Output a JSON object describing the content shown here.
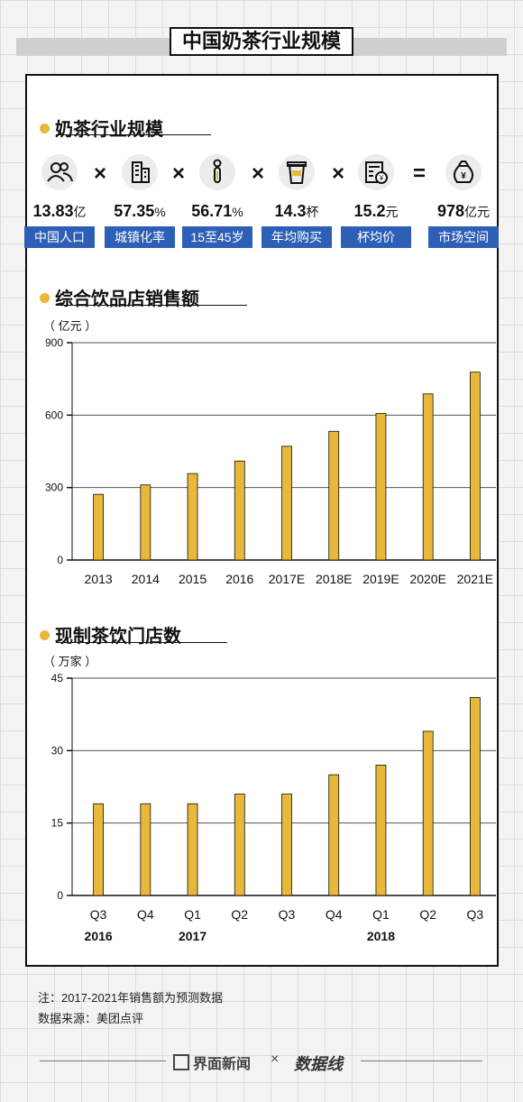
{
  "header": {
    "title": "中国奶茶行业规模"
  },
  "section1": {
    "title": "奶茶行业规模",
    "formula": [
      {
        "icon": "people-icon",
        "value": "13.83",
        "unit": "亿",
        "label": "中国人口"
      },
      {
        "icon": "buildings-icon",
        "value": "57.35",
        "unit": "%",
        "label": "城镇化率"
      },
      {
        "icon": "person-icon",
        "value": "56.71",
        "unit": "%",
        "label": "15至45岁"
      },
      {
        "icon": "cup-icon",
        "value": "14.3",
        "unit": "杯",
        "label": "年均购买"
      },
      {
        "icon": "price-tag-icon",
        "value": "15.2",
        "unit": "元",
        "label": "杯均价"
      },
      {
        "icon": "money-bag-icon",
        "value": "978",
        "unit": "亿元",
        "label": "市场空间"
      }
    ],
    "operators": [
      "×",
      "×",
      "×",
      "×",
      "="
    ]
  },
  "chart_data": [
    {
      "type": "bar",
      "title": "综合饮品店销售额",
      "ylabel": "（ 亿元 ）",
      "categories": [
        "2013",
        "2014",
        "2015",
        "2016",
        "2017E",
        "2018E",
        "2019E",
        "2020E",
        "2021E"
      ],
      "values": [
        272,
        311,
        358,
        410,
        471,
        533,
        607,
        688,
        778
      ],
      "ylim": [
        0,
        900
      ],
      "yticks": [
        0,
        300,
        600,
        900
      ],
      "bar_color": "#e9b83a"
    },
    {
      "type": "bar",
      "title": "现制茶饮门店数",
      "ylabel": "（ 万家 ）",
      "categories": [
        "Q3",
        "Q4",
        "Q1",
        "Q2",
        "Q3",
        "Q4",
        "Q1",
        "Q2",
        "Q3"
      ],
      "year_labels": [
        "2016",
        "2017",
        "2018"
      ],
      "values": [
        19,
        19,
        19,
        21,
        21,
        25,
        27,
        34,
        41
      ],
      "ylim": [
        0,
        45
      ],
      "yticks": [
        0,
        15,
        30,
        45
      ],
      "bar_color": "#e9b83a"
    }
  ],
  "footer": {
    "note": "注：2017-2021年销售额为预测数据",
    "source": "数据来源：美团点评",
    "brand1": "界面新闻",
    "sep": "×",
    "brand2": "数据线"
  }
}
